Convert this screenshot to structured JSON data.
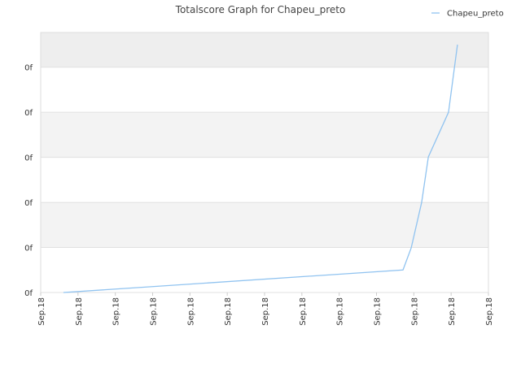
{
  "chart_data": {
    "type": "line",
    "title": "Totalscore Graph for Chapeu_preto",
    "x": [
      0.61,
      9.71,
      9.93,
      10.21,
      10.39,
      10.93,
      11.17
    ],
    "series": [
      {
        "name": "Chapeu_preto",
        "color": "#90c3f0",
        "values": [
          0,
          0.5,
          0.99,
          2.0,
          3.01,
          4.0,
          5.5
        ]
      }
    ],
    "xlim": [
      0,
      12
    ],
    "xticks": [
      {
        "value": 0,
        "label": "Sep.18"
      },
      {
        "value": 1,
        "label": "Sep.18"
      },
      {
        "value": 2,
        "label": "Sep.18"
      },
      {
        "value": 3,
        "label": "Sep.18"
      },
      {
        "value": 4,
        "label": "Sep.18"
      },
      {
        "value": 5,
        "label": "Sep.18"
      },
      {
        "value": 6,
        "label": "Sep.18"
      },
      {
        "value": 7,
        "label": "Sep.18"
      },
      {
        "value": 8,
        "label": "Sep.18"
      },
      {
        "value": 9,
        "label": "Sep.18"
      },
      {
        "value": 10,
        "label": "Sep.18"
      },
      {
        "value": 11,
        "label": "Sep.18"
      },
      {
        "value": 12,
        "label": "Sep.18"
      }
    ],
    "ylim": [
      0,
      5.77
    ],
    "yticks": [
      {
        "value": 0,
        "label": "0f"
      },
      {
        "value": 1,
        "label": "0f"
      },
      {
        "value": 2,
        "label": "0f"
      },
      {
        "value": 3,
        "label": "0f"
      },
      {
        "value": 4,
        "label": "0f"
      },
      {
        "value": 5,
        "label": "0f"
      }
    ],
    "grid": true,
    "legend": "top-right"
  }
}
